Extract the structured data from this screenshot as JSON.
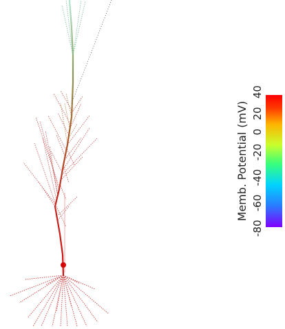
{
  "colorbar": {
    "title": "Memb. Potential",
    "unit": "(mV)",
    "ticks": [
      "-80",
      "-60",
      "-40",
      "-20",
      "0",
      "20",
      "40"
    ],
    "min": -80,
    "max": 40,
    "gradient": [
      "#7f00ff",
      "#2a7bff",
      "#00d4ff",
      "#39ff7a",
      "#c8ff2e",
      "#ffb300",
      "#ff3a00",
      "#ff0000"
    ]
  },
  "neuron": {
    "soma_color": "#d40000",
    "apical_trunk_colors": [
      "#cc1010",
      "#c01818",
      "#b84a2a",
      "#a6672a",
      "#8f8a47",
      "#7aa67a",
      "#a8e0c8"
    ],
    "basal_color": "#cc2a2a",
    "oblique_color": "#bb2f2f",
    "tuft_color": "#7fbf9f"
  }
}
